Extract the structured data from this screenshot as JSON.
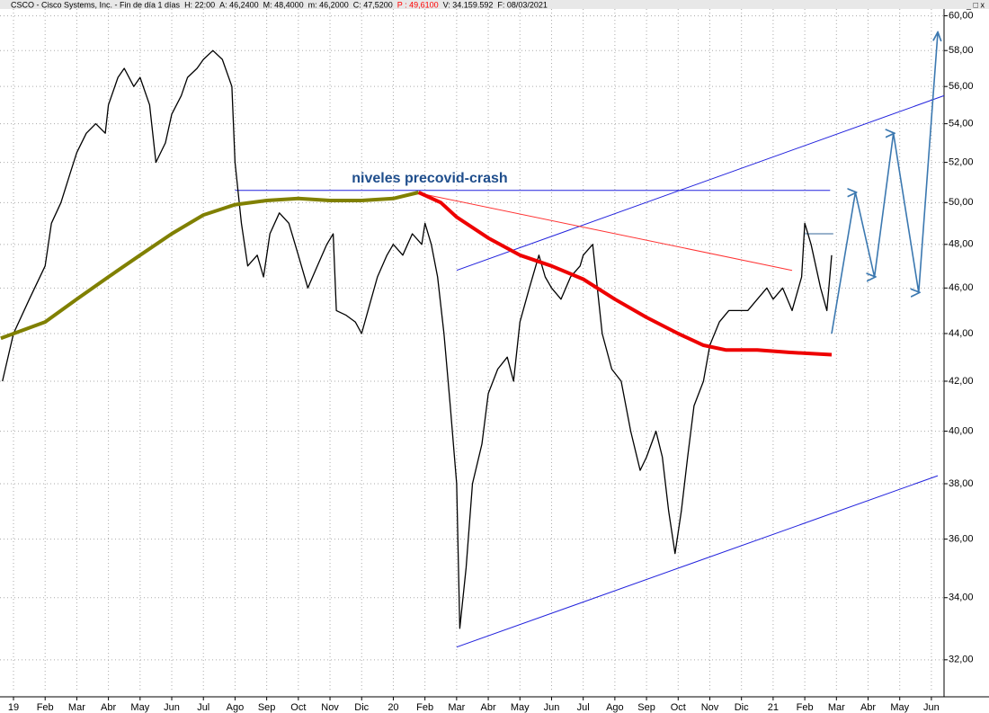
{
  "header": {
    "segments": [
      {
        "text": "CSCO - Cisco Systems, Inc. - Fin de día 1 días",
        "color": "#000000"
      },
      {
        "text": "H: 22:00",
        "color": "#000000"
      },
      {
        "text": "A: 46,2400",
        "color": "#000000"
      },
      {
        "text": "M: 48,4000",
        "color": "#000000"
      },
      {
        "text": "m: 46,2000",
        "color": "#000000"
      },
      {
        "text": "C: 47,5200",
        "color": "#000000"
      },
      {
        "text": "P : 49,6100",
        "color": "#ff0000"
      },
      {
        "text": "V: 34.159.592",
        "color": "#000000"
      },
      {
        "text": "F: 08/03/2021",
        "color": "#000000"
      }
    ],
    "controls": "_ □ x"
  },
  "chart_data": {
    "type": "line",
    "annotation": "niveles precovid-crash",
    "log_scale": true,
    "grid": true,
    "xlim": [
      -0.426,
      29.4
    ],
    "ylim": [
      31,
      60.4
    ],
    "xticks": [
      {
        "value": 0,
        "label": "19"
      },
      {
        "value": 1,
        "label": "Feb"
      },
      {
        "value": 2,
        "label": "Mar"
      },
      {
        "value": 3,
        "label": "Abr"
      },
      {
        "value": 4,
        "label": "May"
      },
      {
        "value": 5,
        "label": "Jun"
      },
      {
        "value": 6,
        "label": "Jul"
      },
      {
        "value": 7,
        "label": "Ago"
      },
      {
        "value": 8,
        "label": "Sep"
      },
      {
        "value": 9,
        "label": "Oct"
      },
      {
        "value": 10,
        "label": "Nov"
      },
      {
        "value": 11,
        "label": "Dic"
      },
      {
        "value": 12,
        "label": "20"
      },
      {
        "value": 13,
        "label": "Feb"
      },
      {
        "value": 14,
        "label": "Mar"
      },
      {
        "value": 15,
        "label": "Abr"
      },
      {
        "value": 16,
        "label": "May"
      },
      {
        "value": 17,
        "label": "Jun"
      },
      {
        "value": 18,
        "label": "Jul"
      },
      {
        "value": 19,
        "label": "Ago"
      },
      {
        "value": 20,
        "label": "Sep"
      },
      {
        "value": 21,
        "label": "Oct"
      },
      {
        "value": 22,
        "label": "Nov"
      },
      {
        "value": 23,
        "label": "Dic"
      },
      {
        "value": 24,
        "label": "21"
      },
      {
        "value": 25,
        "label": "Feb"
      },
      {
        "value": 26,
        "label": "Mar"
      },
      {
        "value": 27,
        "label": "Abr"
      },
      {
        "value": 28,
        "label": "May"
      },
      {
        "value": 29,
        "label": "Jun"
      }
    ],
    "yticks": [
      {
        "value": 32,
        "label": "32,00"
      },
      {
        "value": 34,
        "label": "34,00"
      },
      {
        "value": 36,
        "label": "36,00"
      },
      {
        "value": 38,
        "label": "38,00"
      },
      {
        "value": 40,
        "label": "40,00"
      },
      {
        "value": 42,
        "label": "42,00"
      },
      {
        "value": 44,
        "label": "44,00"
      },
      {
        "value": 46,
        "label": "46,00"
      },
      {
        "value": 48,
        "label": "48,00"
      },
      {
        "value": 50,
        "label": "50,00"
      },
      {
        "value": 52,
        "label": "52,00"
      },
      {
        "value": 54,
        "label": "54,00"
      },
      {
        "value": 56,
        "label": "56,00"
      },
      {
        "value": 58,
        "label": "58,00"
      },
      {
        "value": 60,
        "label": "60,00"
      }
    ],
    "series": [
      {
        "color": "#000000",
        "width": 1.3,
        "x": [
          -0.35,
          0,
          0.5,
          1,
          1.2,
          1.5,
          1.8,
          2,
          2.3,
          2.6,
          2.9,
          3,
          3.3,
          3.5,
          3.8,
          4,
          4.3,
          4.5,
          4.8,
          5,
          5.3,
          5.5,
          5.8,
          6,
          6.3,
          6.6,
          6.9,
          7,
          7.2,
          7.4,
          7.7,
          7.9,
          8.1,
          8.4,
          8.7,
          9,
          9.3,
          9.6,
          9.9,
          10.1,
          10.2,
          10.5,
          10.8,
          11,
          11.2,
          11.5,
          11.8,
          12,
          12.3,
          12.6,
          12.9,
          13,
          13.2,
          13.4,
          13.6,
          13.8,
          14,
          14.1,
          14.3,
          14.5,
          14.8,
          15,
          15.3,
          15.6,
          15.8,
          16,
          16.3,
          16.6,
          16.8,
          17,
          17.3,
          17.6,
          17.9,
          18,
          18.3,
          18.6,
          18.9,
          19.2,
          19.5,
          19.8,
          20,
          20.3,
          20.5,
          20.7,
          20.9,
          21.1,
          21.3,
          21.5,
          21.8,
          22,
          22.3,
          22.6,
          22.9,
          23.2,
          23.5,
          23.8,
          24,
          24.3,
          24.6,
          24.9,
          25,
          25.2,
          25.5,
          25.7,
          25.85
        ],
        "values": [
          42,
          44,
          45.5,
          47,
          49,
          50,
          51.5,
          52.5,
          53.5,
          54,
          53.5,
          55,
          56.5,
          57,
          56,
          56.5,
          55,
          52,
          53,
          54.5,
          55.5,
          56.5,
          57,
          57.5,
          58,
          57.5,
          56,
          52,
          49,
          47,
          47.5,
          46.5,
          48.5,
          49.5,
          49,
          47.5,
          46,
          47,
          48,
          48.5,
          45,
          44.8,
          44.5,
          44,
          45,
          46.5,
          47.5,
          48,
          47.5,
          48.5,
          48,
          49,
          48,
          46.5,
          44,
          41,
          38,
          33,
          35,
          38,
          39.5,
          41.5,
          42.5,
          43,
          42,
          44.5,
          46,
          47.5,
          46.5,
          46,
          45.5,
          46.5,
          47,
          47.5,
          48,
          44,
          42.5,
          42,
          40,
          38.5,
          39,
          40,
          39,
          37,
          35.5,
          37,
          39,
          41,
          42,
          43.5,
          44.5,
          45,
          45,
          45,
          45.5,
          46,
          45.5,
          46,
          45,
          46.5,
          49,
          48,
          46,
          45,
          47.5
        ]
      },
      {
        "color": "#808000",
        "width": 4,
        "x": [
          -0.4,
          1,
          2,
          3,
          4,
          5,
          6,
          7,
          8,
          9,
          10,
          11,
          12,
          12.8
        ],
        "values": [
          43.8,
          44.5,
          45.5,
          46.5,
          47.5,
          48.5,
          49.4,
          49.9,
          50.1,
          50.2,
          50.1,
          50.1,
          50.2,
          50.5
        ]
      },
      {
        "color": "#ee0000",
        "width": 4,
        "x": [
          12.8,
          13.5,
          14,
          15,
          16,
          17,
          18,
          19,
          20,
          21,
          21.8,
          22.5,
          23.5,
          24.5,
          25.85
        ],
        "values": [
          50.5,
          50,
          49.3,
          48.3,
          47.5,
          47,
          46.4,
          45.5,
          44.7,
          44,
          43.5,
          43.3,
          43.3,
          43.2,
          43.1
        ]
      }
    ],
    "drawings": [
      {
        "color": "#2222dd",
        "arrow": false,
        "x": [
          7,
          25.8
        ],
        "y": [
          50.6,
          50.6
        ]
      },
      {
        "color": "#2222dd",
        "arrow": false,
        "x": [
          14,
          29.4
        ],
        "y": [
          46.8,
          55.5
        ]
      },
      {
        "color": "#2222dd",
        "arrow": false,
        "x": [
          14,
          29.2
        ],
        "y": [
          32.4,
          38.3
        ]
      },
      {
        "color": "#ff3333",
        "arrow": false,
        "x": [
          13,
          24.6
        ],
        "y": [
          50.4,
          46.8
        ]
      },
      {
        "color": "#336699",
        "arrow": false,
        "x": [
          25,
          25.9
        ],
        "y": [
          48.5,
          48.5
        ]
      },
      {
        "color": "#3b78b0",
        "arrow": true,
        "x": [
          25.85,
          26.6,
          27.2,
          27.8,
          28.6,
          29.2
        ],
        "y": [
          44,
          50.5,
          46.5,
          53.5,
          45.8,
          59
        ]
      }
    ]
  }
}
